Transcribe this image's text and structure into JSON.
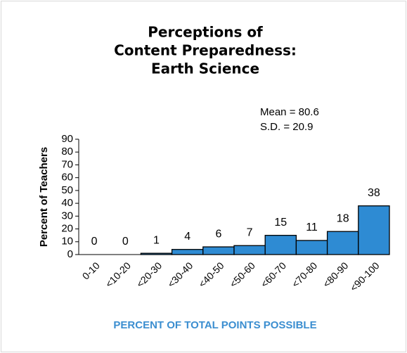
{
  "chart_data": {
    "type": "bar",
    "title": [
      "Perceptions of",
      "Content Preparedness:",
      "Earth Science"
    ],
    "annotations": [
      "Mean = 80.6",
      "S.D. = 20.9"
    ],
    "x_label": "PERCENT OF TOTAL POINTS POSSIBLE",
    "y_label": "Percent of Teachers",
    "categories": [
      "0-10",
      "<10-20",
      "<20-30",
      "<30-40",
      "<40-50",
      "<50-60",
      "<60-70",
      "<70-80",
      "<80-90",
      "<90-100"
    ],
    "values": [
      0,
      0,
      1,
      4,
      6,
      7,
      15,
      11,
      18,
      38
    ],
    "color": "#2e8bd3",
    "ylim": [
      0,
      90
    ],
    "yticks": [
      0,
      10,
      20,
      30,
      40,
      50,
      60,
      70,
      80,
      90
    ],
    "grid": false
  }
}
